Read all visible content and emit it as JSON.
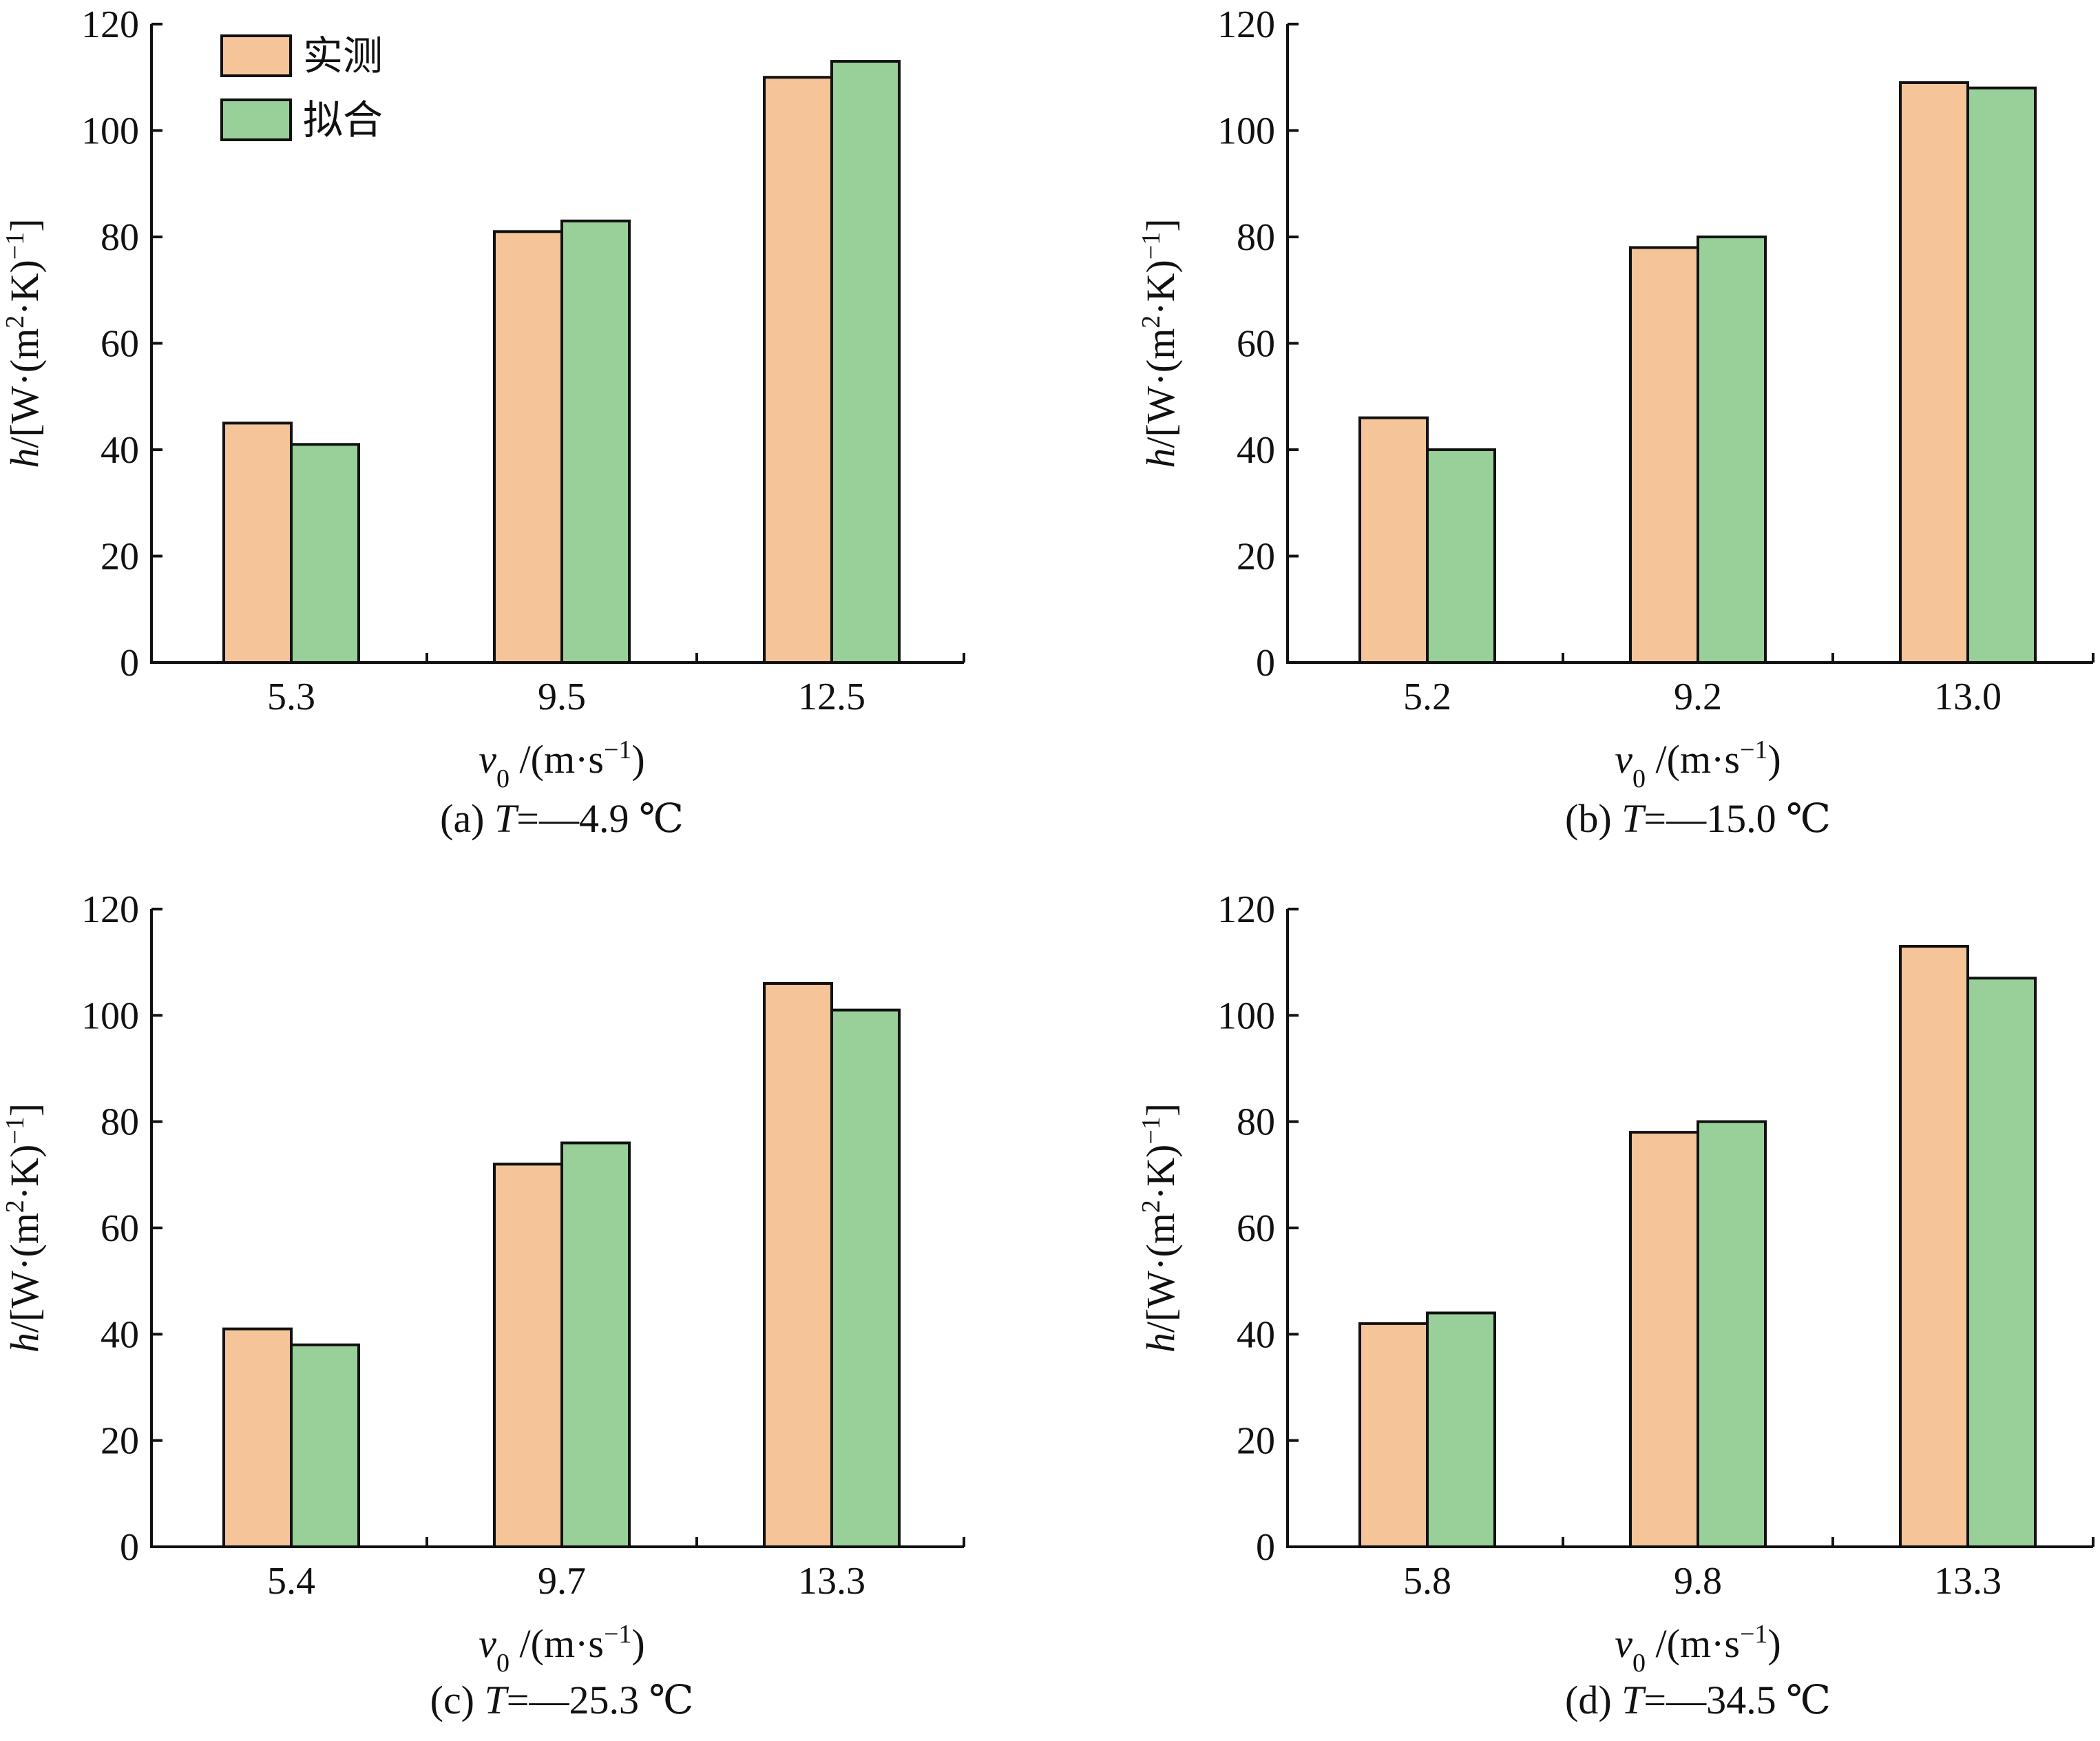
{
  "legend": {
    "items": [
      {
        "label": "实测",
        "color": "#F5C499"
      },
      {
        "label": "拟合",
        "color": "#99D09A"
      }
    ]
  },
  "chart_data": [
    {
      "type": "bar",
      "panel": "a",
      "caption": {
        "prefix": "(a)",
        "symbol": "T",
        "value": "=—4.9 ℃"
      },
      "categories": [
        "5.3",
        "9.5",
        "12.5"
      ],
      "series": [
        {
          "name": "实测",
          "values": [
            45,
            81,
            110
          ],
          "color": "#F5C499"
        },
        {
          "name": "拟合",
          "values": [
            41,
            83,
            113
          ],
          "color": "#99D09A"
        }
      ],
      "ylim": [
        0,
        120
      ],
      "yticks": [
        0,
        20,
        40,
        60,
        80,
        100,
        120
      ],
      "ylabel": "h/[W·(m²·K)⁻¹]",
      "xlabel": "v₀/(m·s⁻¹)"
    },
    {
      "type": "bar",
      "panel": "b",
      "caption": {
        "prefix": "(b)",
        "symbol": "T",
        "value": "=—15.0 ℃"
      },
      "categories": [
        "5.2",
        "9.2",
        "13.0"
      ],
      "series": [
        {
          "name": "实测",
          "values": [
            46,
            78,
            109
          ],
          "color": "#F5C499"
        },
        {
          "name": "拟合",
          "values": [
            40,
            80,
            108
          ],
          "color": "#99D09A"
        }
      ],
      "ylim": [
        0,
        120
      ],
      "yticks": [
        0,
        20,
        40,
        60,
        80,
        100,
        120
      ],
      "ylabel": "h/[W·(m²·K)⁻¹]",
      "xlabel": "v₀/(m·s⁻¹)"
    },
    {
      "type": "bar",
      "panel": "c",
      "caption": {
        "prefix": "(c)",
        "symbol": "T",
        "value": "=—25.3 ℃"
      },
      "categories": [
        "5.4",
        "9.7",
        "13.3"
      ],
      "series": [
        {
          "name": "实测",
          "values": [
            41,
            72,
            106
          ],
          "color": "#F5C499"
        },
        {
          "name": "拟合",
          "values": [
            38,
            76,
            101
          ],
          "color": "#99D09A"
        }
      ],
      "ylim": [
        0,
        120
      ],
      "yticks": [
        0,
        20,
        40,
        60,
        80,
        100,
        120
      ],
      "ylabel": "h/[W·(m²·K)⁻¹]",
      "xlabel": "v₀/(m·s⁻¹)"
    },
    {
      "type": "bar",
      "panel": "d",
      "caption": {
        "prefix": "(d)",
        "symbol": "T",
        "value": "=—34.5 ℃"
      },
      "categories": [
        "5.8",
        "9.8",
        "13.3"
      ],
      "series": [
        {
          "name": "实测",
          "values": [
            42,
            78,
            113
          ],
          "color": "#F5C499"
        },
        {
          "name": "拟合",
          "values": [
            44,
            80,
            107
          ],
          "color": "#99D09A"
        }
      ],
      "ylim": [
        0,
        120
      ],
      "yticks": [
        0,
        20,
        40,
        60,
        80,
        100,
        120
      ],
      "ylabel": "h/[W·(m²·K)⁻¹]",
      "xlabel": "v₀/(m·s⁻¹)"
    }
  ]
}
